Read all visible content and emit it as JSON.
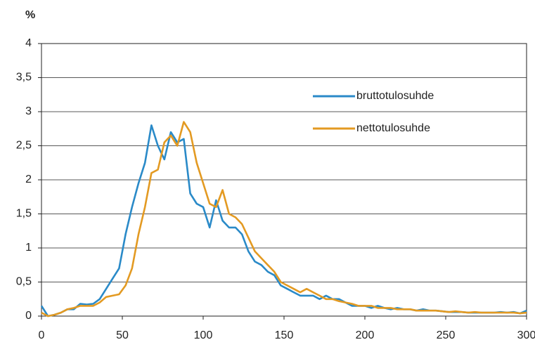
{
  "chart_data": {
    "type": "line",
    "ylabel": "%",
    "x": [
      0,
      4,
      8,
      12,
      16,
      20,
      24,
      28,
      32,
      36,
      40,
      44,
      48,
      52,
      56,
      60,
      64,
      68,
      72,
      76,
      80,
      84,
      88,
      92,
      96,
      100,
      104,
      108,
      112,
      116,
      120,
      124,
      128,
      132,
      136,
      140,
      144,
      148,
      152,
      156,
      160,
      164,
      168,
      172,
      176,
      180,
      184,
      188,
      192,
      196,
      200,
      204,
      208,
      212,
      216,
      220,
      224,
      228,
      232,
      236,
      240,
      244,
      248,
      252,
      256,
      260,
      264,
      268,
      272,
      276,
      280,
      284,
      288,
      292,
      296,
      300
    ],
    "series": [
      {
        "name": "bruttotulosuhde",
        "color": "#2a8ac8",
        "values": [
          0.15,
          0.0,
          0.02,
          0.05,
          0.1,
          0.1,
          0.18,
          0.17,
          0.18,
          0.25,
          0.4,
          0.55,
          0.7,
          1.2,
          1.6,
          1.95,
          2.25,
          2.8,
          2.5,
          2.3,
          2.7,
          2.55,
          2.6,
          1.8,
          1.65,
          1.6,
          1.3,
          1.7,
          1.4,
          1.3,
          1.3,
          1.2,
          0.95,
          0.8,
          0.75,
          0.65,
          0.6,
          0.45,
          0.4,
          0.35,
          0.3,
          0.3,
          0.3,
          0.25,
          0.3,
          0.25,
          0.25,
          0.2,
          0.15,
          0.15,
          0.15,
          0.12,
          0.15,
          0.12,
          0.1,
          0.12,
          0.1,
          0.1,
          0.08,
          0.1,
          0.08,
          0.08,
          0.07,
          0.06,
          0.06,
          0.06,
          0.05,
          0.05,
          0.05,
          0.05,
          0.05,
          0.06,
          0.05,
          0.06,
          0.04,
          0.08
        ]
      },
      {
        "name": "nettotulosuhde",
        "color": "#e39a22",
        "values": [
          0.05,
          0.0,
          0.02,
          0.05,
          0.1,
          0.12,
          0.15,
          0.15,
          0.15,
          0.2,
          0.28,
          0.3,
          0.32,
          0.45,
          0.7,
          1.2,
          1.6,
          2.1,
          2.15,
          2.55,
          2.65,
          2.5,
          2.85,
          2.7,
          2.25,
          1.95,
          1.65,
          1.6,
          1.85,
          1.5,
          1.45,
          1.35,
          1.15,
          0.95,
          0.85,
          0.75,
          0.65,
          0.5,
          0.45,
          0.4,
          0.35,
          0.4,
          0.35,
          0.3,
          0.25,
          0.25,
          0.22,
          0.2,
          0.18,
          0.15,
          0.15,
          0.15,
          0.12,
          0.12,
          0.12,
          0.1,
          0.1,
          0.1,
          0.08,
          0.08,
          0.08,
          0.08,
          0.07,
          0.06,
          0.07,
          0.06,
          0.05,
          0.06,
          0.05,
          0.05,
          0.05,
          0.05,
          0.05,
          0.05,
          0.04,
          0.05
        ]
      }
    ],
    "xlim": [
      0,
      300
    ],
    "xticks": [
      0,
      50,
      100,
      150,
      200,
      250,
      300
    ],
    "ylim": [
      0,
      4
    ],
    "yticks": [
      0,
      {
        "value": 0.5,
        "label": "0,5"
      },
      1,
      {
        "value": 1.5,
        "label": "1,5"
      },
      2,
      {
        "value": 2.5,
        "label": "2,5"
      },
      3,
      {
        "value": 3.5,
        "label": "3,5"
      },
      4
    ],
    "grid": true,
    "legend": "right"
  }
}
